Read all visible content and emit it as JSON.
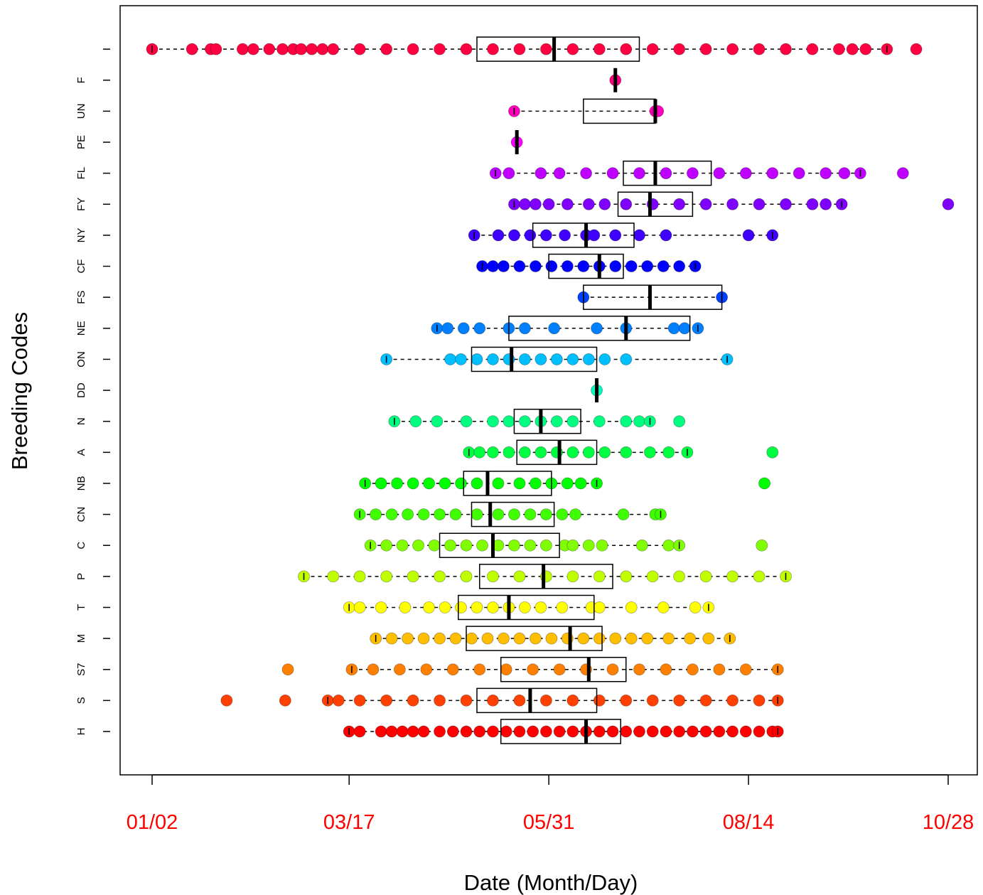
{
  "chart_data": {
    "type": "boxplot",
    "orientation": "horizontal",
    "xlabel": "Date (Month/Day)",
    "ylabel": "Breeding Codes",
    "x_ticks": [
      {
        "label": "01/02",
        "value": 2
      },
      {
        "label": "03/17",
        "value": 76
      },
      {
        "label": "05/31",
        "value": 151
      },
      {
        "label": "08/14",
        "value": 226
      },
      {
        "label": "10/28",
        "value": 301
      }
    ],
    "xlim": [
      -10,
      313
    ],
    "x_units": "day of year",
    "tick_label_color": "#ff0000",
    "grid": false,
    "series": [
      {
        "code": "H",
        "color": "#ff0000",
        "q1": 133,
        "median": 165,
        "q3": 178,
        "whisker_low": 76,
        "whisker_high": 237,
        "points": [
          76,
          80,
          88,
          92,
          96,
          100,
          104,
          110,
          115,
          120,
          125,
          130,
          135,
          140,
          145,
          150,
          155,
          160,
          165,
          170,
          175,
          180,
          185,
          190,
          195,
          200,
          205,
          210,
          215,
          220,
          225,
          230,
          235,
          237
        ]
      },
      {
        "code": "S",
        "color": "#ff4000",
        "q1": 124,
        "median": 144,
        "q3": 169,
        "whisker_low": 68,
        "whisker_high": 237,
        "points": [
          30,
          52,
          68,
          72,
          80,
          90,
          100,
          110,
          120,
          130,
          140,
          150,
          160,
          170,
          180,
          190,
          200,
          210,
          220,
          230,
          237
        ]
      },
      {
        "code": "S7",
        "color": "#ff8000",
        "q1": 133,
        "median": 166,
        "q3": 180,
        "whisker_low": 77,
        "whisker_high": 237,
        "points": [
          53,
          77,
          85,
          95,
          105,
          115,
          125,
          135,
          145,
          155,
          165,
          175,
          185,
          195,
          205,
          215,
          225,
          237
        ]
      },
      {
        "code": "M",
        "color": "#ffbf00",
        "q1": 120,
        "median": 159,
        "q3": 171,
        "whisker_low": 86,
        "whisker_high": 219,
        "points": [
          86,
          92,
          98,
          104,
          110,
          116,
          122,
          128,
          134,
          140,
          146,
          152,
          158,
          164,
          170,
          176,
          182,
          188,
          196,
          204,
          211,
          219
        ]
      },
      {
        "code": "T",
        "color": "#ffff00",
        "q1": 117,
        "median": 136,
        "q3": 168,
        "whisker_low": 76,
        "whisker_high": 211,
        "points": [
          76,
          80,
          88,
          97,
          106,
          112,
          118,
          124,
          130,
          136,
          142,
          148,
          156,
          167,
          170,
          182,
          194,
          206,
          211
        ]
      },
      {
        "code": "P",
        "color": "#bfff00",
        "q1": 125,
        "median": 149,
        "q3": 175,
        "whisker_low": 59,
        "whisker_high": 240,
        "points": [
          59,
          70,
          80,
          90,
          100,
          110,
          120,
          130,
          140,
          150,
          160,
          170,
          180,
          190,
          200,
          210,
          220,
          230,
          240
        ]
      },
      {
        "code": "C",
        "color": "#80ff00",
        "q1": 110,
        "median": 130,
        "q3": 155,
        "whisker_low": 84,
        "whisker_high": 200,
        "points": [
          84,
          90,
          96,
          102,
          108,
          114,
          120,
          126,
          132,
          138,
          144,
          150,
          157,
          160,
          166,
          171,
          186,
          196,
          200,
          231
        ]
      },
      {
        "code": "CN",
        "color": "#40ff00",
        "q1": 122,
        "median": 129,
        "q3": 153,
        "whisker_low": 80,
        "whisker_high": 193,
        "points": [
          80,
          86,
          92,
          98,
          104,
          110,
          116,
          124,
          132,
          138,
          144,
          150,
          156,
          161,
          179,
          191,
          193
        ]
      },
      {
        "code": "NB",
        "color": "#00ff00",
        "q1": 119,
        "median": 128,
        "q3": 152,
        "whisker_low": 82,
        "whisker_high": 169,
        "points": [
          82,
          88,
          94,
          100,
          106,
          112,
          118,
          124,
          132,
          140,
          146,
          152,
          158,
          163,
          169,
          232
        ]
      },
      {
        "code": "A",
        "color": "#00ff40",
        "q1": 139,
        "median": 155,
        "q3": 169,
        "whisker_low": 121,
        "whisker_high": 203,
        "points": [
          121,
          125,
          130,
          136,
          142,
          148,
          154,
          160,
          166,
          172,
          180,
          189,
          196,
          203,
          235
        ]
      },
      {
        "code": "N",
        "color": "#00ff80",
        "q1": 138,
        "median": 148,
        "q3": 163,
        "whisker_low": 93,
        "whisker_high": 189,
        "points": [
          93,
          101,
          109,
          120,
          130,
          136,
          142,
          148,
          154,
          160,
          170,
          180,
          185,
          189,
          200
        ]
      },
      {
        "code": "DD",
        "color": "#00ffbf",
        "q1": 169,
        "median": 169,
        "q3": 169,
        "whisker_low": 169,
        "whisker_high": 169,
        "points": [
          169
        ]
      },
      {
        "code": "ON",
        "color": "#00bfff",
        "q1": 122,
        "median": 137,
        "q3": 169,
        "whisker_low": 90,
        "whisker_high": 218,
        "points": [
          90,
          114,
          118,
          124,
          130,
          136,
          142,
          148,
          154,
          160,
          166,
          172,
          180,
          218
        ]
      },
      {
        "code": "NE",
        "color": "#0080ff",
        "q1": 136,
        "median": 180,
        "q3": 204,
        "whisker_low": 109,
        "whisker_high": 207,
        "points": [
          109,
          113,
          119,
          125,
          136,
          142,
          153,
          169,
          180,
          198,
          202,
          207
        ]
      },
      {
        "code": "FS",
        "color": "#0040ff",
        "q1": 164,
        "median": 189,
        "q3": 216,
        "whisker_low": 164,
        "whisker_high": 216,
        "points": [
          164,
          216
        ]
      },
      {
        "code": "CF",
        "color": "#0000ff",
        "q1": 151,
        "median": 170,
        "q3": 179,
        "whisker_low": 126,
        "whisker_high": 206,
        "points": [
          126,
          130,
          134,
          140,
          146,
          152,
          158,
          164,
          170,
          176,
          182,
          188,
          194,
          200,
          206
        ]
      },
      {
        "code": "NY",
        "color": "#4000ff",
        "q1": 145,
        "median": 165,
        "q3": 183,
        "whisker_low": 123,
        "whisker_high": 235,
        "points": [
          123,
          132,
          138,
          144,
          150,
          157,
          165,
          168,
          176,
          185,
          195,
          226,
          235
        ]
      },
      {
        "code": "FY",
        "color": "#8000ff",
        "q1": 177,
        "median": 189,
        "q3": 205,
        "whisker_low": 138,
        "whisker_high": 261,
        "points": [
          138,
          142,
          146,
          151,
          158,
          166,
          172,
          180,
          190,
          200,
          210,
          220,
          230,
          240,
          250,
          255,
          261,
          301
        ]
      },
      {
        "code": "FL",
        "color": "#bf00ff",
        "q1": 179,
        "median": 191,
        "q3": 212,
        "whisker_low": 131,
        "whisker_high": 268,
        "points": [
          131,
          136,
          148,
          155,
          165,
          175,
          185,
          195,
          205,
          215,
          225,
          235,
          245,
          255,
          262,
          268,
          284
        ]
      },
      {
        "code": "PE",
        "color": "#ff00ff",
        "q1": 139,
        "median": 139,
        "q3": 139,
        "whisker_low": 139,
        "whisker_high": 139,
        "points": [
          139
        ]
      },
      {
        "code": "UN",
        "color": "#ff00bf",
        "q1": 164,
        "median": 191,
        "q3": 191,
        "whisker_low": 138,
        "whisker_high": 191,
        "points": [
          138,
          191,
          192
        ]
      },
      {
        "code": "F",
        "color": "#ff0080",
        "q1": 176,
        "median": 176,
        "q3": 176,
        "whisker_low": 176,
        "whisker_high": 176,
        "points": [
          176
        ]
      },
      {
        "code": "",
        "color": "#ff0040",
        "q1": 124,
        "median": 153,
        "q3": 185,
        "whisker_low": 2,
        "whisker_high": 278,
        "points": [
          2,
          17,
          24,
          26,
          36,
          40,
          46,
          51,
          55,
          58,
          62,
          66,
          70,
          80,
          90,
          100,
          110,
          120,
          130,
          140,
          150,
          160,
          170,
          180,
          190,
          200,
          210,
          220,
          230,
          240,
          250,
          260,
          265,
          270,
          278,
          289
        ]
      }
    ]
  }
}
